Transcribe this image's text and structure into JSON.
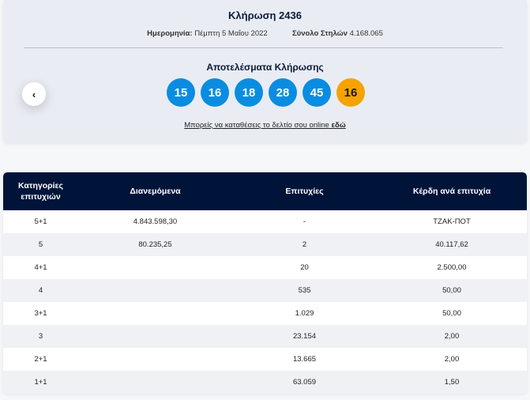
{
  "draw": {
    "title": "Κλήρωση 2436",
    "date_label": "Ημερομηνία:",
    "date_value": "Πέμπτη 5 Μαΐου 2022",
    "columns_label": "Σύνολο Στηλών",
    "columns_value": "4.168.065",
    "results_title": "Αποτελέσματα Κλήρωσης",
    "numbers": [
      "15",
      "16",
      "18",
      "28",
      "45"
    ],
    "bonus_number": "16",
    "online_text": "Μπορείς να καταθέσεις το δελτίο σου online",
    "online_link": "εδώ",
    "prev_icon": "chevron-left-icon",
    "colors": {
      "ball": "#0a8de0",
      "bonus": "#f5a300",
      "header": "#00143a"
    }
  },
  "table": {
    "headers": {
      "category_line1": "Κατηγορίες",
      "category_line2": "επιτυχιών",
      "distributed": "Διανεμόμενα",
      "winners": "Επιτυχίες",
      "prize": "Κέρδη ανά επιτυχία"
    },
    "rows": [
      {
        "category": "5+1",
        "distributed": "4.843.598,30",
        "winners": "-",
        "prize": "ΤΖΑΚ-ΠΟΤ"
      },
      {
        "category": "5",
        "distributed": "80.235,25",
        "winners": "2",
        "prize": "40.117,62"
      },
      {
        "category": "4+1",
        "distributed": "",
        "winners": "20",
        "prize": "2.500,00"
      },
      {
        "category": "4",
        "distributed": "",
        "winners": "535",
        "prize": "50,00"
      },
      {
        "category": "3+1",
        "distributed": "",
        "winners": "1.029",
        "prize": "50,00"
      },
      {
        "category": "3",
        "distributed": "",
        "winners": "23.154",
        "prize": "2,00"
      },
      {
        "category": "2+1",
        "distributed": "",
        "winners": "13.665",
        "prize": "2,00"
      },
      {
        "category": "1+1",
        "distributed": "",
        "winners": "63.059",
        "prize": "1,50"
      }
    ]
  }
}
